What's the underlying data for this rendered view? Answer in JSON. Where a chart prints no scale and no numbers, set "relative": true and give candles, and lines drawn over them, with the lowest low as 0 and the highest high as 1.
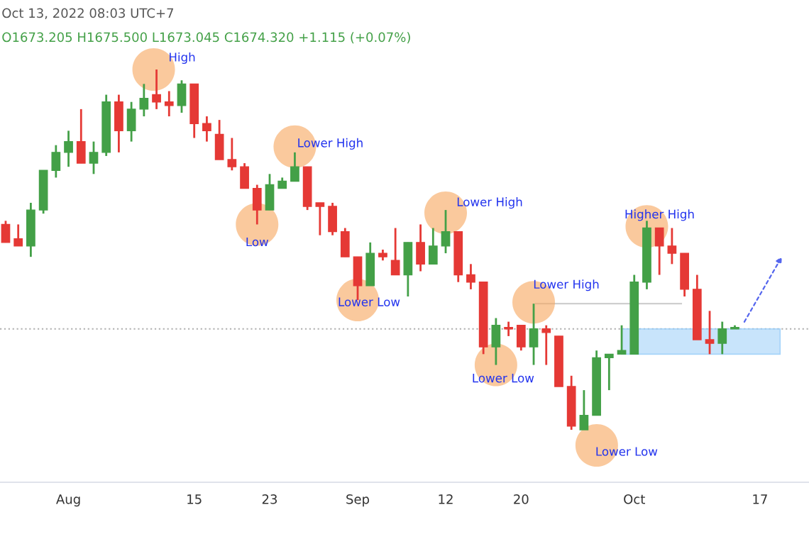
{
  "chart_data": {
    "type": "candlestick",
    "relative": true,
    "tick_labels": "x",
    "categories": [
      null,
      null,
      null,
      null,
      null,
      "Aug",
      null,
      null,
      null,
      null,
      null,
      null,
      null,
      null,
      null,
      "15",
      null,
      null,
      null,
      null,
      null,
      "23",
      null,
      null,
      null,
      null,
      null,
      null,
      "Sep",
      null,
      null,
      null,
      null,
      null,
      null,
      "12",
      null,
      null,
      null,
      null,
      null,
      "20",
      null,
      null,
      null,
      null,
      null,
      null,
      null,
      null,
      "Oct",
      null,
      null,
      null,
      null,
      null,
      null,
      null,
      null,
      null,
      "17",
      null,
      null,
      null
    ],
    "ohlc": [
      [
        0.57,
        0.58,
        0.52,
        0.52
      ],
      [
        0.53,
        0.57,
        0.51,
        0.51
      ],
      [
        0.51,
        0.63,
        0.48,
        0.61
      ],
      [
        0.61,
        0.72,
        0.6,
        0.72
      ],
      [
        0.72,
        0.79,
        0.7,
        0.77
      ],
      [
        0.77,
        0.83,
        0.73,
        0.8
      ],
      [
        0.8,
        0.89,
        0.74,
        0.74
      ],
      [
        0.74,
        0.8,
        0.71,
        0.77
      ],
      [
        0.77,
        0.93,
        0.76,
        0.91
      ],
      [
        0.91,
        0.93,
        0.77,
        0.83
      ],
      [
        0.83,
        0.91,
        0.8,
        0.89
      ],
      [
        0.89,
        0.96,
        0.87,
        0.92
      ],
      [
        0.93,
        1.0,
        0.89,
        0.91
      ],
      [
        0.91,
        0.94,
        0.87,
        0.9
      ],
      [
        0.9,
        0.97,
        0.88,
        0.96
      ],
      [
        0.96,
        0.96,
        0.81,
        0.85
      ],
      [
        0.85,
        0.87,
        0.8,
        0.83
      ],
      [
        0.82,
        0.86,
        0.75,
        0.75
      ],
      [
        0.75,
        0.81,
        0.72,
        0.73
      ],
      [
        0.73,
        0.74,
        0.67,
        0.67
      ],
      [
        0.67,
        0.68,
        0.57,
        0.61
      ],
      [
        0.61,
        0.71,
        0.61,
        0.68
      ],
      [
        0.67,
        0.7,
        0.67,
        0.69
      ],
      [
        0.69,
        0.77,
        0.69,
        0.73
      ],
      [
        0.73,
        0.73,
        0.61,
        0.62
      ],
      [
        0.63,
        0.63,
        0.54,
        0.62
      ],
      [
        0.62,
        0.63,
        0.54,
        0.55
      ],
      [
        0.55,
        0.56,
        0.48,
        0.48
      ],
      [
        0.48,
        0.48,
        0.36,
        0.4
      ],
      [
        0.4,
        0.52,
        0.4,
        0.49
      ],
      [
        0.49,
        0.5,
        0.47,
        0.48
      ],
      [
        0.47,
        0.56,
        0.43,
        0.43
      ],
      [
        0.43,
        0.52,
        0.37,
        0.52
      ],
      [
        0.52,
        0.57,
        0.44,
        0.46
      ],
      [
        0.46,
        0.56,
        0.46,
        0.51
      ],
      [
        0.51,
        0.61,
        0.49,
        0.55
      ],
      [
        0.55,
        0.55,
        0.41,
        0.43
      ],
      [
        0.43,
        0.46,
        0.39,
        0.41
      ],
      [
        0.41,
        0.41,
        0.21,
        0.23
      ],
      [
        0.23,
        0.31,
        0.18,
        0.29
      ],
      [
        0.28,
        0.3,
        0.26,
        0.28
      ],
      [
        0.29,
        0.29,
        0.22,
        0.23
      ],
      [
        0.23,
        0.35,
        0.18,
        0.28
      ],
      [
        0.28,
        0.29,
        0.18,
        0.27
      ],
      [
        0.26,
        0.26,
        0.12,
        0.12
      ],
      [
        0.12,
        0.15,
        0.0,
        0.01
      ],
      [
        0.0,
        0.11,
        0.0,
        0.04
      ],
      [
        0.04,
        0.22,
        0.04,
        0.2
      ],
      [
        0.2,
        0.21,
        0.11,
        0.21
      ],
      [
        0.21,
        0.29,
        0.21,
        0.22
      ],
      [
        0.21,
        0.43,
        0.21,
        0.41
      ],
      [
        0.41,
        0.58,
        0.39,
        0.56
      ],
      [
        0.56,
        0.56,
        0.43,
        0.51
      ],
      [
        0.51,
        0.56,
        0.46,
        0.49
      ],
      [
        0.49,
        0.49,
        0.37,
        0.39
      ],
      [
        0.39,
        0.43,
        0.25,
        0.25
      ],
      [
        0.25,
        0.33,
        0.21,
        0.24
      ],
      [
        0.24,
        0.3,
        0.21,
        0.28
      ],
      [
        0.28,
        0.29,
        0.28,
        0.28
      ],
      null,
      null,
      null,
      null,
      null
    ],
    "colors": [
      "#e53935",
      "#e53935",
      "#43a047",
      "#43a047",
      "#43a047",
      "#43a047",
      "#e53935",
      "#43a047",
      "#43a047",
      "#e53935",
      "#43a047",
      "#43a047",
      "#e53935",
      "#e53935",
      "#43a047",
      "#e53935",
      "#e53935",
      "#e53935",
      "#e53935",
      "#e53935",
      "#e53935",
      "#43a047",
      "#43a047",
      "#43a047",
      "#e53935",
      "#e53935",
      "#e53935",
      "#e53935",
      "#e53935",
      "#43a047",
      "#e53935",
      "#e53935",
      "#43a047",
      "#e53935",
      "#43a047",
      "#43a047",
      "#e53935",
      "#e53935",
      "#e53935",
      "#43a047",
      "#e53935",
      "#e53935",
      "#43a047",
      "#e53935",
      "#e53935",
      "#e53935",
      "#43a047",
      "#43a047",
      "#43a047",
      "#43a047",
      "#43a047",
      "#43a047",
      "#e53935",
      "#e53935",
      "#e53935",
      "#e53935",
      "#e53935",
      "#43a047",
      "#43a047",
      null,
      null,
      null,
      null,
      null
    ],
    "ref_lines": [
      {
        "axis": "y",
        "value": 0.35,
        "color": "#cfcfcf"
      },
      {
        "axis": "y",
        "value": 0.28,
        "color": "#b0b0b0",
        "line_style": "dotted"
      }
    ],
    "bands": [
      {
        "axis": "y",
        "from": 0.21,
        "to": 0.28,
        "color": "#bbdefb"
      }
    ],
    "annotations": [
      "Oct 13, 2022 08:03 UTC+7",
      "O1673.205 H1675.500 L1673.045 C1674.320 +1.115 (+0.07%)",
      "High",
      "Low",
      "Lower High",
      "Lower Low",
      "Lower High",
      "Lower Low",
      "Lower High",
      "Lower Low",
      "Higher High"
    ]
  }
}
